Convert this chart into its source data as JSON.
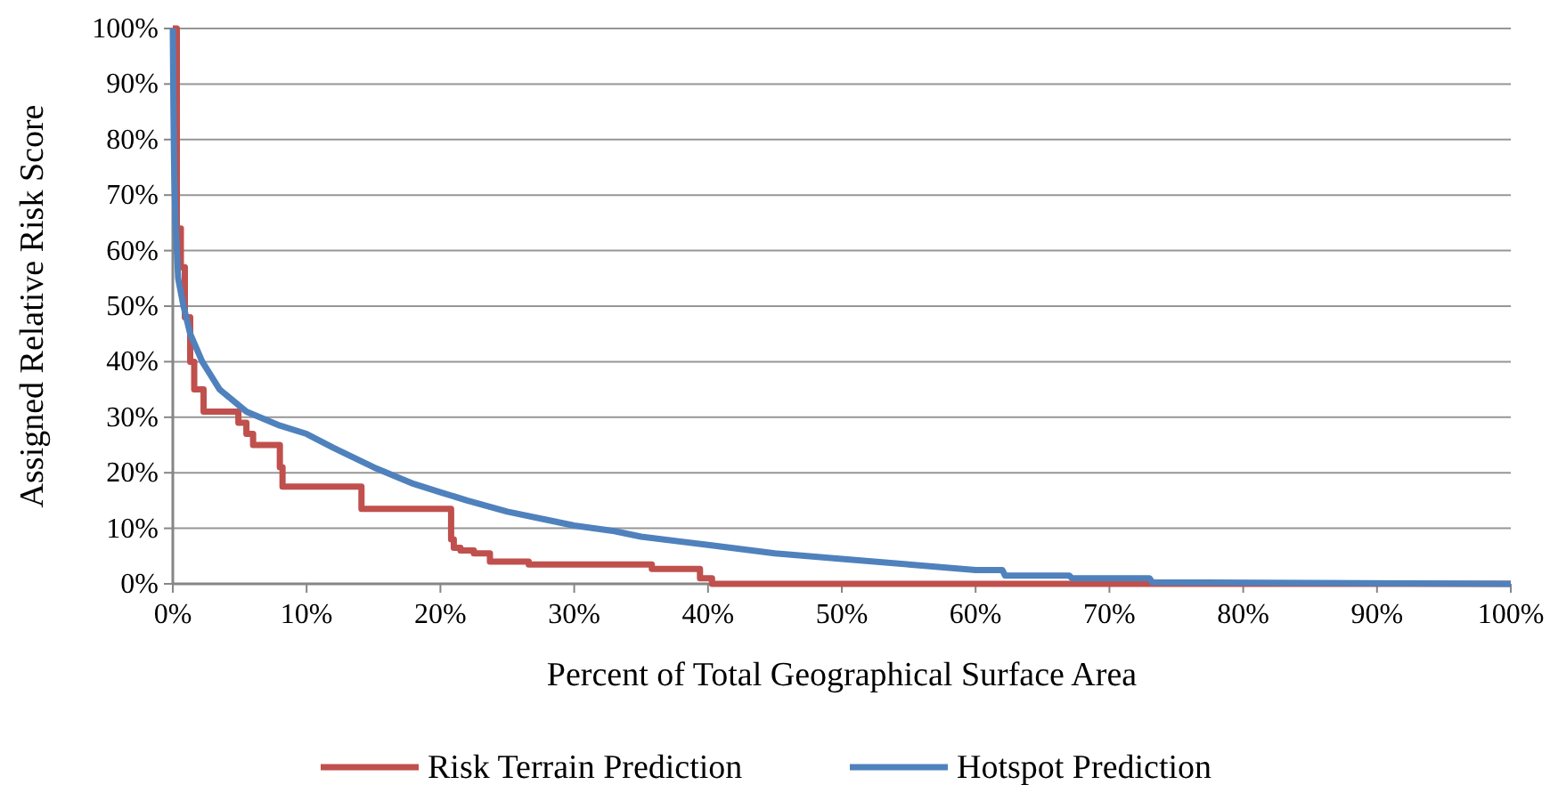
{
  "chart_data": {
    "type": "line",
    "xlabel": "Percent of Total Geographical Surface Area",
    "ylabel": "Assigned Relative Risk Score",
    "xlim": [
      0,
      100
    ],
    "ylim": [
      0,
      100
    ],
    "xticks": [
      {
        "value": 0,
        "label": "0%"
      },
      {
        "value": 10,
        "label": "10%"
      },
      {
        "value": 20,
        "label": "20%"
      },
      {
        "value": 30,
        "label": "30%"
      },
      {
        "value": 40,
        "label": "40%"
      },
      {
        "value": 50,
        "label": "50%"
      },
      {
        "value": 60,
        "label": "60%"
      },
      {
        "value": 70,
        "label": "70%"
      },
      {
        "value": 80,
        "label": "80%"
      },
      {
        "value": 90,
        "label": "90%"
      },
      {
        "value": 100,
        "label": "100%"
      }
    ],
    "yticks": [
      {
        "value": 0,
        "label": "0%"
      },
      {
        "value": 10,
        "label": "10%"
      },
      {
        "value": 20,
        "label": "20%"
      },
      {
        "value": 30,
        "label": "30%"
      },
      {
        "value": 40,
        "label": "40%"
      },
      {
        "value": 50,
        "label": "50%"
      },
      {
        "value": 60,
        "label": "60%"
      },
      {
        "value": 70,
        "label": "70%"
      },
      {
        "value": 80,
        "label": "80%"
      },
      {
        "value": 90,
        "label": "90%"
      },
      {
        "value": 100,
        "label": "100%"
      }
    ],
    "grid": "y",
    "legend": "bottom",
    "line_style": "solid",
    "series": [
      {
        "name": "Risk Terrain Prediction",
        "color": "#c0504d",
        "type": "step",
        "x": [
          0,
          0.3,
          0.6,
          0.9,
          1.3,
          1.6,
          2.3,
          3.9,
          4.9,
          5.5,
          6,
          8,
          8.2,
          14.1,
          20.8,
          21,
          21.5,
          22.5,
          23.7,
          26.6,
          35.8,
          39.4,
          40.3,
          100
        ],
        "values": [
          100,
          64,
          57,
          48,
          40,
          35,
          31,
          31,
          29,
          27,
          25,
          21,
          17.5,
          13.5,
          8,
          6.5,
          6,
          5.5,
          4,
          3.5,
          2.7,
          1,
          0,
          0
        ]
      },
      {
        "name": "Hotspot Prediction",
        "color": "#4f81bd",
        "x": [
          0,
          0.05,
          0.1,
          0.2,
          0.4,
          0.8,
          1.3,
          2.2,
          3.5,
          5.5,
          8,
          10,
          12,
          15,
          18,
          20,
          22,
          25,
          28,
          30,
          33,
          35,
          40,
          45,
          50,
          55,
          60,
          62,
          62.2,
          67,
          67.2,
          73,
          73.2,
          100
        ],
        "values": [
          100,
          85,
          75,
          65,
          55,
          50,
          45,
          40,
          35,
          31,
          28.5,
          27,
          24.5,
          21,
          18,
          16.5,
          15,
          13,
          11.5,
          10.5,
          9.5,
          8.5,
          7,
          5.5,
          4.5,
          3.5,
          2.5,
          2.5,
          1.5,
          1.5,
          1,
          1,
          0.3,
          0
        ]
      }
    ]
  }
}
